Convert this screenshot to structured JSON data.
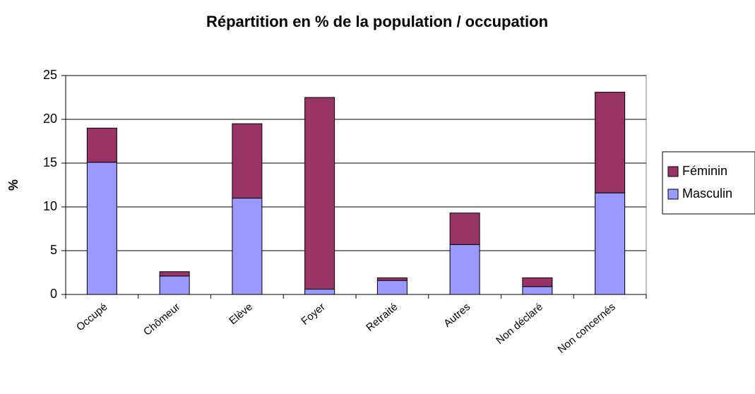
{
  "chart_data": {
    "type": "stacked_bar",
    "title": "Répartition en % de la population / occupation",
    "y_label": "%",
    "categories": [
      "Occupé",
      "Chômeur",
      "Elève",
      "Foyer",
      "Retraité",
      "Autres",
      "Non déclaré",
      "Non concernés"
    ],
    "series": [
      {
        "name": "Masculin",
        "color": "#9999ff",
        "values": [
          15.1,
          2.1,
          11.0,
          0.6,
          1.6,
          5.7,
          0.9,
          11.6
        ]
      },
      {
        "name": "Féminin",
        "color": "#993366",
        "values": [
          3.9,
          0.5,
          8.5,
          21.9,
          0.3,
          3.6,
          1.0,
          11.5
        ]
      }
    ],
    "ylim": [
      0,
      25
    ],
    "yticks": [
      0,
      5,
      10,
      15,
      20,
      25
    ],
    "grid": true,
    "legend": "right"
  }
}
